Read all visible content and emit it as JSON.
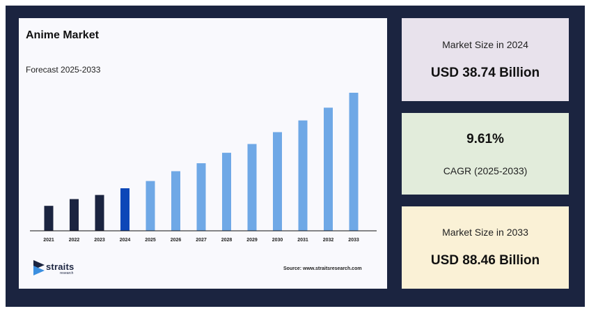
{
  "chart_data": {
    "type": "bar",
    "title": "Anime Market",
    "subtitle": "Forecast 2025-2033",
    "categories": [
      "2021",
      "2022",
      "2023",
      "2024",
      "2025",
      "2026",
      "2027",
      "2028",
      "2029",
      "2030",
      "2031",
      "2032",
      "2033"
    ],
    "values": [
      35.8,
      45.5,
      51.4,
      61.0,
      71.4,
      85.5,
      96.9,
      111.9,
      124.5,
      141.5,
      158.3,
      176.6,
      198.0
    ],
    "value_units": "relative (unlabeled axis)",
    "highlight_category": "2024",
    "colors": {
      "historic": "#1b2440",
      "current": "#0d47b8",
      "forecast": "#6fa8e6"
    },
    "ylim": [
      0,
      200
    ],
    "grid": false,
    "legend": "none"
  },
  "source_text": "Source: www.straitsresearch.com",
  "logo": {
    "name": "straits",
    "sub": "research"
  },
  "stats": [
    {
      "label": "Market Size in 2024",
      "value": "USD 38.74 Billion"
    },
    {
      "label": "CAGR (2025-2033)",
      "value": "9.61%"
    },
    {
      "label": "Market Size in 2033",
      "value": "USD 88.46 Billion"
    }
  ]
}
